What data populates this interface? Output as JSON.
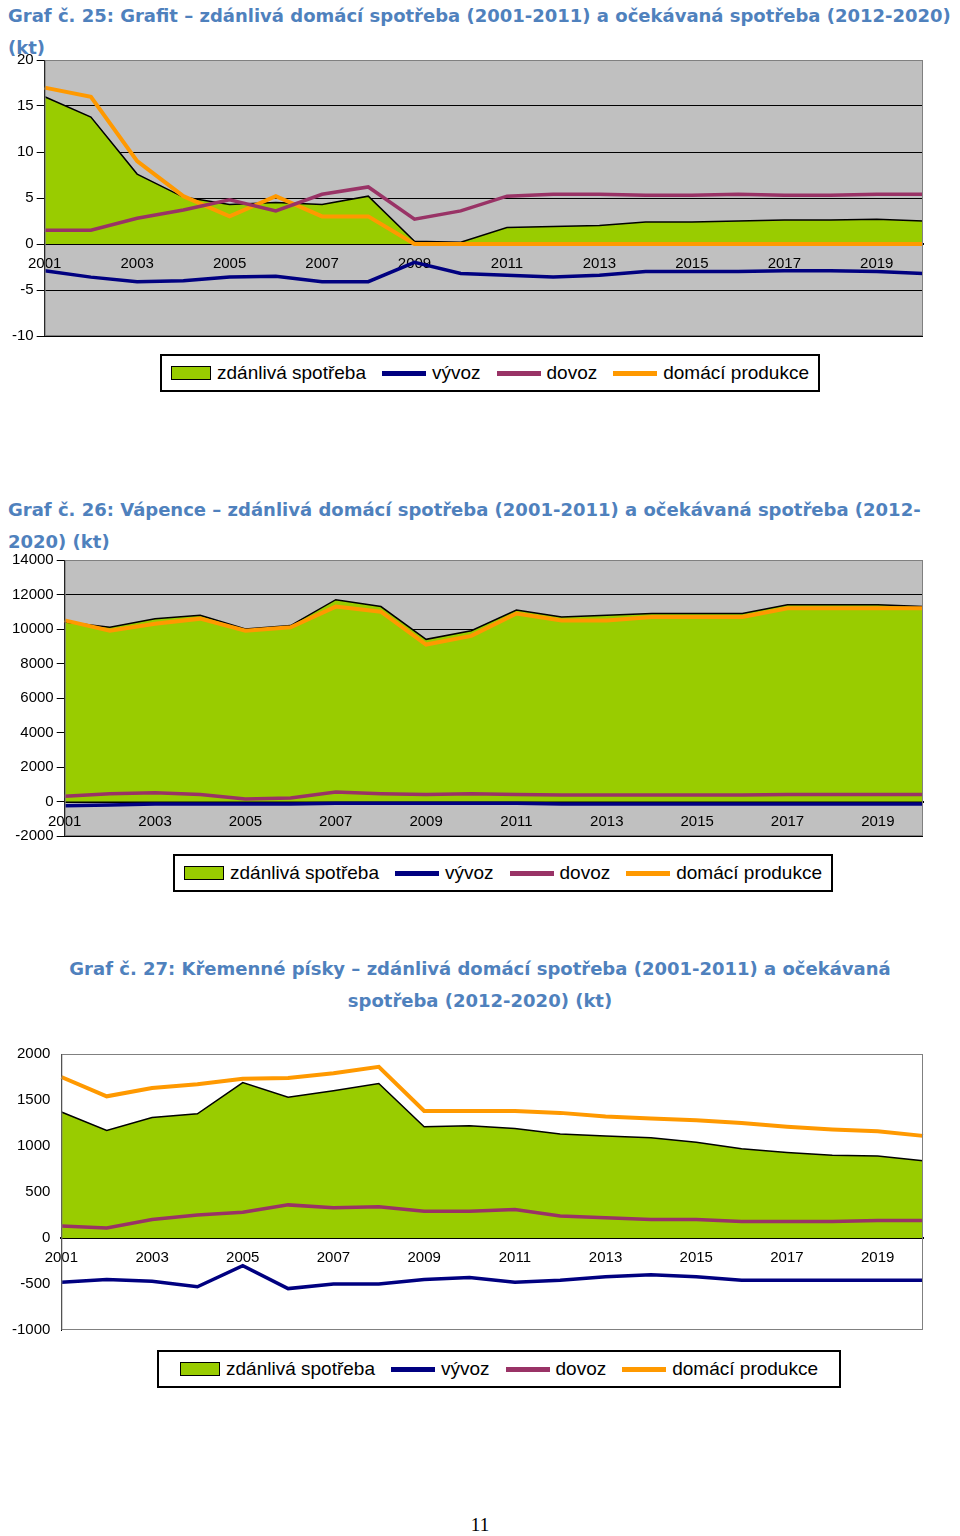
{
  "page_number": "11",
  "chart_data": [
    {
      "type": "line",
      "title": "Graf č. 25: Grafit – zdánlivá domácí spotřeba (2001-2011) a očekávaná spotřeba (2012-2020) (kt)",
      "categories": [
        "2001",
        null,
        "2003",
        null,
        "2005",
        null,
        "2007",
        null,
        "2009",
        null,
        "2011",
        null,
        "2013",
        null,
        "2015",
        null,
        "2017",
        null,
        "2019",
        null
      ],
      "ylim": [
        -10,
        20
      ],
      "yticks": [
        -10,
        -5,
        0,
        5,
        10,
        15,
        20
      ],
      "grid": true,
      "legend": "bottom",
      "series": [
        {
          "name": "zdánlivá spotřeba",
          "type": "area",
          "color": "#99cc00",
          "values": [
            16,
            13.8,
            7.6,
            5.1,
            4.3,
            4.5,
            4.3,
            5.2,
            0.3,
            0.2,
            1.8,
            1.9,
            2.0,
            2.4,
            2.4,
            2.5,
            2.6,
            2.6,
            2.7,
            2.5
          ]
        },
        {
          "name": "vývoz",
          "type": "line",
          "color": "#000080",
          "values": [
            -2.9,
            -3.6,
            -4.1,
            -4.0,
            -3.6,
            -3.5,
            -4.1,
            -4.1,
            -2.0,
            -3.2,
            -3.4,
            -3.6,
            -3.4,
            -3.0,
            -3.0,
            -3.0,
            -2.9,
            -2.9,
            -3.0,
            -3.2
          ]
        },
        {
          "name": "dovoz",
          "type": "line",
          "color": "#993366",
          "values": [
            1.5,
            1.5,
            2.8,
            3.7,
            4.8,
            3.6,
            5.4,
            6.2,
            2.7,
            3.6,
            5.2,
            5.4,
            5.4,
            5.3,
            5.3,
            5.4,
            5.3,
            5.3,
            5.4,
            5.4
          ]
        },
        {
          "name": "domácí produkce",
          "type": "line",
          "color": "#ff9900",
          "values": [
            17,
            16,
            9,
            5.2,
            3,
            5.2,
            3,
            3,
            0,
            0,
            0,
            0,
            0,
            0,
            0,
            0,
            0,
            0,
            0,
            0
          ]
        }
      ]
    },
    {
      "type": "line",
      "title": "Graf č. 26: Vápence – zdánlivá domácí spotřeba (2001-2011) a očekávaná spotřeba (2012-2020) (kt)",
      "categories": [
        "2001",
        null,
        "2003",
        null,
        "2005",
        null,
        "2007",
        null,
        "2009",
        null,
        "2011",
        null,
        "2013",
        null,
        "2015",
        null,
        "2017",
        null,
        "2019",
        null
      ],
      "ylim": [
        -2000,
        14000
      ],
      "yticks": [
        -2000,
        0,
        2000,
        4000,
        6000,
        8000,
        10000,
        12000,
        14000
      ],
      "grid": true,
      "legend": "bottom",
      "series": [
        {
          "name": "zdánlivá spotřeba",
          "type": "area",
          "color": "#99cc00",
          "values": [
            10400,
            10100,
            10600,
            10800,
            10000,
            10200,
            11700,
            11300,
            9400,
            9900,
            11100,
            10700,
            10800,
            10900,
            10900,
            10900,
            11400,
            11400,
            11400,
            11300
          ]
        },
        {
          "name": "vývoz",
          "type": "line",
          "color": "#000080",
          "values": [
            -250,
            -200,
            -150,
            -150,
            -150,
            -150,
            -100,
            -100,
            -100,
            -100,
            -100,
            -150,
            -150,
            -150,
            -150,
            -150,
            -150,
            -150,
            -150,
            -150
          ]
        },
        {
          "name": "dovoz",
          "type": "line",
          "color": "#993366",
          "values": [
            300,
            450,
            500,
            400,
            150,
            200,
            550,
            450,
            400,
            450,
            400,
            380,
            380,
            380,
            380,
            380,
            400,
            400,
            400,
            400
          ]
        },
        {
          "name": "domácí produkce",
          "type": "line",
          "color": "#ff9900",
          "values": [
            10500,
            9900,
            10300,
            10600,
            9900,
            10100,
            11300,
            11000,
            9100,
            9600,
            10900,
            10500,
            10500,
            10700,
            10700,
            10700,
            11200,
            11200,
            11200,
            11200
          ]
        }
      ]
    },
    {
      "type": "line",
      "title": "Graf č. 27: Křemenné písky – zdánlivá domácí spotřeba (2001-2011) a očekávaná spotřeba (2012-2020) (kt)",
      "categories": [
        "2001",
        null,
        "2003",
        null,
        "2005",
        null,
        "2007",
        null,
        "2009",
        null,
        "2011",
        null,
        "2013",
        null,
        "2015",
        null,
        "2017",
        null,
        "2019",
        null
      ],
      "ylim": [
        -1000,
        2000
      ],
      "yticks": [
        -1000,
        -500,
        0,
        500,
        1000,
        1500,
        2000
      ],
      "grid": false,
      "legend": "bottom",
      "series": [
        {
          "name": "zdánlivá spotřeba",
          "type": "area",
          "color": "#99cc00",
          "values": [
            1370,
            1170,
            1310,
            1350,
            1690,
            1530,
            1600,
            1680,
            1210,
            1220,
            1190,
            1130,
            1110,
            1090,
            1040,
            970,
            930,
            900,
            890,
            840
          ]
        },
        {
          "name": "vývoz",
          "type": "line",
          "color": "#000080",
          "values": [
            -480,
            -450,
            -470,
            -530,
            -300,
            -550,
            -500,
            -500,
            -450,
            -430,
            -480,
            -460,
            -420,
            -400,
            -420,
            -460,
            -460,
            -460,
            -460,
            -460
          ]
        },
        {
          "name": "dovoz",
          "type": "line",
          "color": "#993366",
          "values": [
            130,
            110,
            200,
            250,
            280,
            360,
            330,
            340,
            290,
            290,
            310,
            240,
            220,
            200,
            200,
            180,
            180,
            180,
            190,
            190
          ]
        },
        {
          "name": "domácí produkce",
          "type": "line",
          "color": "#ff9900",
          "values": [
            1750,
            1540,
            1630,
            1670,
            1730,
            1740,
            1790,
            1860,
            1380,
            1380,
            1380,
            1360,
            1320,
            1300,
            1280,
            1250,
            1210,
            1180,
            1160,
            1110
          ]
        }
      ]
    }
  ]
}
